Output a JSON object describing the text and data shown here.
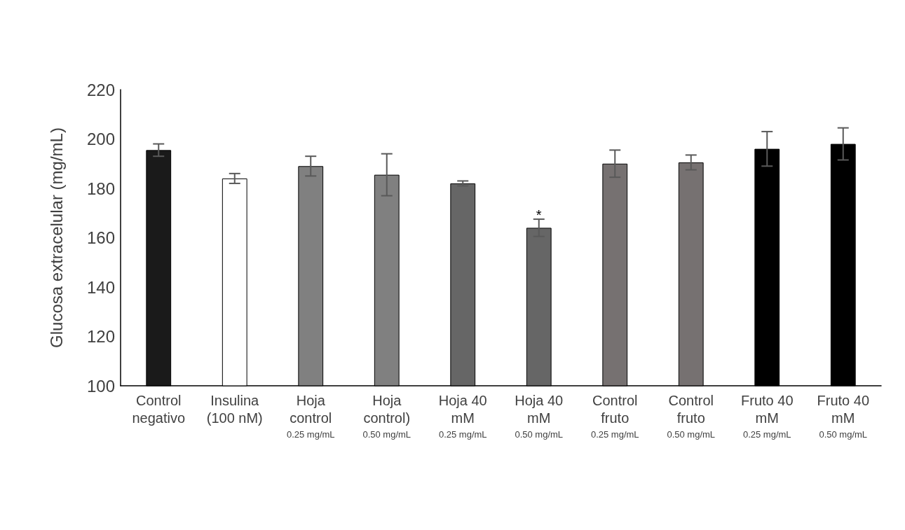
{
  "chart_data": {
    "type": "bar",
    "ylabel": "Glucosa extracelular (mg/mL)",
    "categories": [
      "Control\nnegativo",
      "Insulina\n(100 nM)",
      "Hoja\ncontrol\n0.25 mg/mL",
      "Hoja\ncontrol)\n0.50 mg/mL",
      "Hoja 40\nmM\n0.25 mg/mL",
      "Hoja 40\nmM\n0.50 mg/mL",
      "Control\nfruto\n0.25 mg/mL",
      "Control\nfruto\n0.50 mg/mL",
      "Fruto 40\nmM\n0.25 mg/mL",
      "Fruto 40\nmM\n0.50 mg/mL"
    ],
    "values": [
      195.5,
      184,
      189,
      185.5,
      182,
      164,
      190,
      190.5,
      196,
      198
    ],
    "errors": [
      2.5,
      2,
      4,
      8.5,
      1,
      3.5,
      5.5,
      3,
      7,
      6.5
    ],
    "colors": [
      "#1a1a1a",
      "#ffffff",
      "#808080",
      "#808080",
      "#666666",
      "#666666",
      "#767171",
      "#767171",
      "#000000",
      "#000000"
    ],
    "ylim": [
      100,
      220
    ],
    "yticks": [
      100,
      120,
      140,
      160,
      180,
      200,
      220
    ],
    "grid": false,
    "annotations": [
      {
        "text": "*",
        "x": "Hoja 40\nmM\n0.50 mg/mL",
        "y": 167.5
      }
    ]
  }
}
